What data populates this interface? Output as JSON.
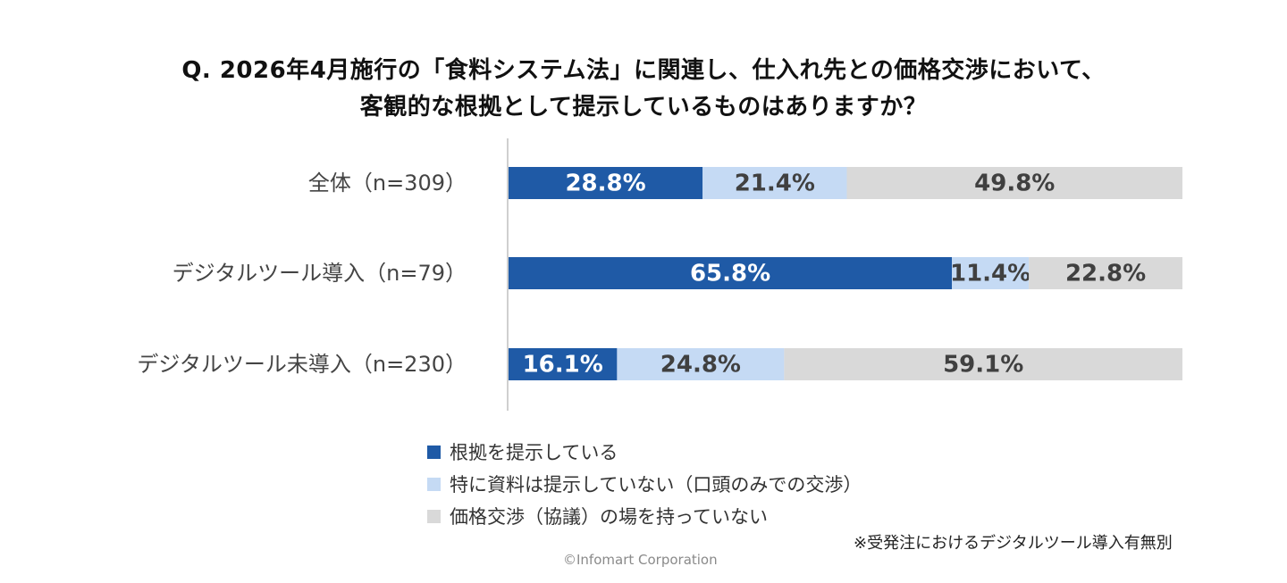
{
  "title_line1": "Q. 2026年4月施行の「食料システム法」に関連し、仕入れ先との価格交渉において、",
  "title_line2": "客観的な根拠として提示しているものはありますか？",
  "chart_data": {
    "type": "bar",
    "orientation": "horizontal",
    "stacked": true,
    "percent": true,
    "categories": [
      "全体（n=309）",
      "デジタルツール導入（n=79）",
      "デジタルツール未導入（n=230）"
    ],
    "series": [
      {
        "name": "根拠を提示している",
        "color": "#1F5AA6",
        "label_color": "#ffffff",
        "values": [
          28.8,
          65.8,
          16.1
        ],
        "labels": [
          "28.8%",
          "65.8%",
          "16.1%"
        ]
      },
      {
        "name": "特に資料は提示していない（口頭のみでの交渉）",
        "color": "#C5DAF4",
        "label_color": "#404040",
        "values": [
          21.4,
          11.4,
          24.8
        ],
        "labels": [
          "21.4%",
          "11.4%",
          "24.8%"
        ]
      },
      {
        "name": "価格交渉（協議）の場を持っていない",
        "color": "#D9D9D9",
        "label_color": "#404040",
        "values": [
          49.8,
          22.8,
          59.1
        ],
        "labels": [
          "49.8%",
          "22.8%",
          "59.1%"
        ]
      }
    ],
    "xlim": [
      0,
      100
    ],
    "grid": false,
    "legend_position": "bottom"
  },
  "note": "※受発注におけるデジタルツール導入有無別",
  "copyright": "©Infomart Corporation"
}
